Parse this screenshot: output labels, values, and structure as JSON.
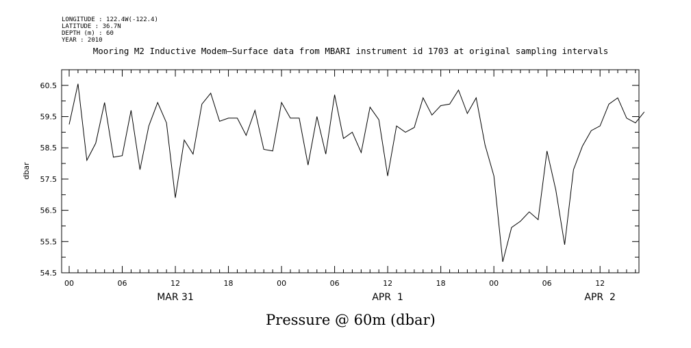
{
  "meta": {
    "longitude": "LONGITUDE : 122.4W(-122.4)",
    "latitude": "LATITUDE : 36.7N",
    "depth": "DEPTH (m) : 60",
    "year": "YEAR : 2010"
  },
  "chart_data": {
    "type": "line",
    "title": "Mooring M2 Inductive Modem—Surface data from MBARI instrument id 1703 at original sampling intervals",
    "bottom_title": "Pressure @ 60m (dbar)",
    "ylabel": "dbar",
    "xlabel": "",
    "ylim": [
      54.5,
      61.0
    ],
    "yticks": [
      "54.5",
      "55.5",
      "56.5",
      "57.5",
      "58.5",
      "59.5",
      "60.5"
    ],
    "x_hour_ticks": [
      "00",
      "06",
      "12",
      "18",
      "00",
      "06",
      "12",
      "18",
      "00",
      "06",
      "12"
    ],
    "x_date_labels": [
      "MAR 31",
      "APR  1",
      "APR  2"
    ],
    "x_start": "2010-03-31 00:00",
    "x_step_hours": 1,
    "series": [
      {
        "values": [
          59.25,
          60.55,
          58.1,
          58.65,
          59.95,
          58.2,
          58.25,
          59.7,
          57.8,
          59.2,
          59.95,
          59.3,
          56.9,
          58.75,
          58.3,
          59.9,
          60.25,
          59.35,
          59.45,
          59.45,
          58.9,
          59.7,
          58.45,
          58.4,
          59.95,
          59.45,
          59.45,
          57.95,
          59.5,
          58.3,
          60.2,
          58.8,
          59.0,
          58.35,
          59.8,
          59.4,
          57.6,
          59.2,
          59.0,
          59.15,
          60.1,
          59.55,
          59.85,
          59.9,
          60.35,
          59.6,
          60.1,
          58.6,
          57.6,
          54.85,
          55.95,
          56.15,
          56.45,
          56.2,
          58.4,
          57.15,
          55.4,
          57.8,
          58.55,
          59.05,
          59.2,
          59.9,
          60.1,
          59.45,
          59.3,
          59.65
        ]
      }
    ],
    "grid": false
  }
}
